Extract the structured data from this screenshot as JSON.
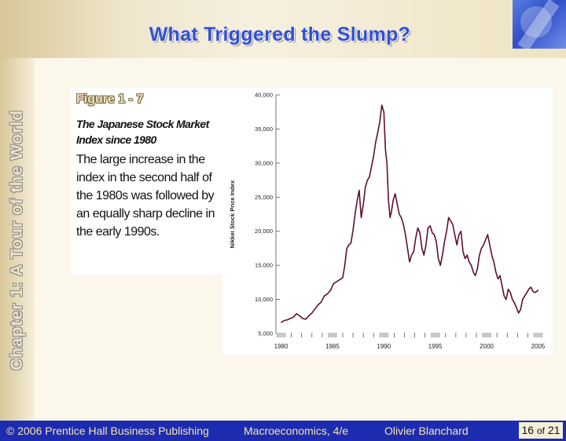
{
  "slide": {
    "title": "What Triggered the Slump?",
    "side_label": "Chapter 1: A Tour of the World"
  },
  "figure": {
    "label": "Figure 1 - 7",
    "subtitle": "The Japanese Stock Market Index since 1980",
    "description": "The large increase in the index in the second half of the 1980s was followed by an equally sharp decline in the early 1990s."
  },
  "footer": {
    "copyright": "© 2006 Prentice Hall Business Publishing",
    "book": "Macroeconomics, 4/e",
    "author": "Olivier Blanchard",
    "page_current": "16",
    "page_of": "of",
    "page_total": "21"
  },
  "colors": {
    "title": "#3150d6",
    "line": "#5e1030",
    "footer_bg": "#1d2bb0",
    "footer_text": "#f4e6a8"
  },
  "icons": {
    "corner": "decorative-corner-graphic"
  },
  "chart_data": {
    "type": "line",
    "ylabel": "Nikkei Stock Price Index",
    "xlabel": "",
    "xlim": [
      1979.5,
      2005.5
    ],
    "ylim": [
      5000,
      40000
    ],
    "x_ticks": [
      1980,
      1985,
      1990,
      1995,
      2000,
      2005
    ],
    "y_ticks": [
      5000,
      10000,
      15000,
      20000,
      25000,
      30000,
      35000,
      40000
    ],
    "y_tick_labels": [
      "5,000",
      "10,000",
      "15,000",
      "20,000",
      "25,000",
      "30,000",
      "35,000",
      "40,000"
    ],
    "grid": false,
    "series": [
      {
        "x": [
          1980.0,
          1980.3,
          1980.6,
          1980.9,
          1981.2,
          1981.5,
          1981.8,
          1982.1,
          1982.4,
          1982.7,
          1983.0,
          1983.3,
          1983.6,
          1983.9,
          1984.2,
          1984.5,
          1984.8,
          1985.1,
          1985.4,
          1985.7,
          1986.0,
          1986.2,
          1986.4,
          1986.6,
          1986.8,
          1987.0,
          1987.2,
          1987.4,
          1987.6,
          1987.8,
          1988.0,
          1988.2,
          1988.4,
          1988.6,
          1988.8,
          1989.0,
          1989.2,
          1989.4,
          1989.6,
          1989.8,
          1990.0,
          1990.15,
          1990.3,
          1990.45,
          1990.6,
          1990.75,
          1990.9,
          1991.1,
          1991.3,
          1991.5,
          1991.7,
          1991.9,
          1992.1,
          1992.3,
          1992.5,
          1992.7,
          1992.9,
          1993.1,
          1993.3,
          1993.5,
          1993.7,
          1993.9,
          1994.1,
          1994.3,
          1994.5,
          1994.7,
          1994.9,
          1995.1,
          1995.3,
          1995.5,
          1995.7,
          1995.9,
          1996.1,
          1996.3,
          1996.5,
          1996.7,
          1996.9,
          1997.1,
          1997.3,
          1997.5,
          1997.7,
          1997.9,
          1998.1,
          1998.3,
          1998.5,
          1998.7,
          1998.9,
          1999.1,
          1999.3,
          1999.5,
          1999.7,
          1999.9,
          2000.1,
          2000.3,
          2000.5,
          2000.7,
          2000.9,
          2001.1,
          2001.3,
          2001.5,
          2001.7,
          2001.9,
          2002.1,
          2002.3,
          2002.5,
          2002.7,
          2002.9,
          2003.1,
          2003.3,
          2003.5,
          2003.7,
          2003.9,
          2004.1,
          2004.3,
          2004.5,
          2004.7,
          2004.9,
          2005.0
        ],
        "y": [
          6600,
          6900,
          7000,
          7200,
          7400,
          7900,
          7600,
          7200,
          7100,
          7600,
          8000,
          8600,
          9200,
          9600,
          10500,
          10800,
          11300,
          12300,
          12600,
          12900,
          13200,
          15000,
          17500,
          18000,
          18300,
          20200,
          22500,
          24500,
          26000,
          22000,
          24000,
          26500,
          27500,
          28000,
          29500,
          31000,
          33000,
          34500,
          36000,
          38500,
          37500,
          32000,
          30000,
          24500,
          22000,
          23000,
          24500,
          25500,
          24000,
          22500,
          22000,
          21000,
          19500,
          17500,
          15500,
          16500,
          17000,
          19000,
          20500,
          19800,
          17500,
          16500,
          18000,
          20500,
          20800,
          19800,
          19500,
          18500,
          16000,
          15000,
          16500,
          18500,
          20000,
          22000,
          21500,
          21000,
          19500,
          18000,
          19500,
          20000,
          17000,
          16000,
          16500,
          15500,
          15000,
          14000,
          13500,
          14500,
          16500,
          17500,
          18000,
          18800,
          19500,
          18000,
          16500,
          15500,
          14000,
          13000,
          13500,
          12000,
          10500,
          10000,
          11500,
          11000,
          10000,
          9500,
          8800,
          8000,
          8500,
          10000,
          10500,
          11000,
          11500,
          11800,
          11200,
          11000,
          11200,
          11400
        ]
      }
    ]
  }
}
